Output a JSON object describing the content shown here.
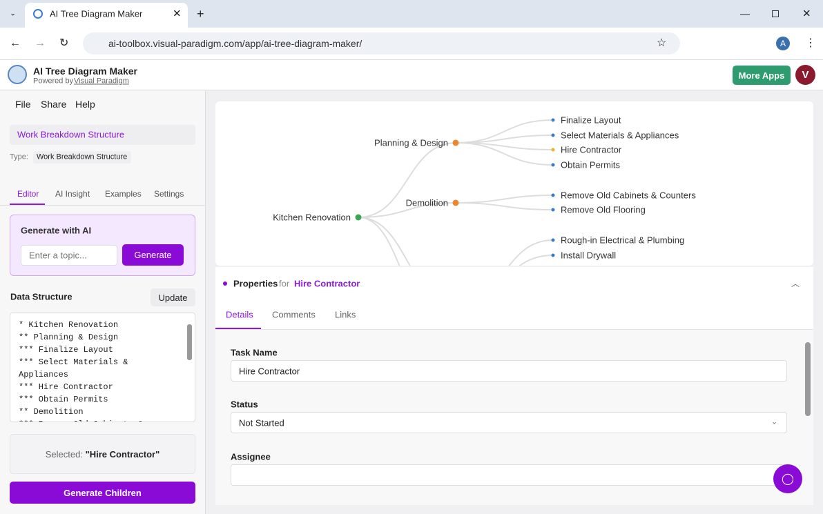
{
  "browser": {
    "tab_title": "AI Tree Diagram Maker",
    "url": "ai-toolbox.visual-paradigm.com/app/ai-tree-diagram-maker/",
    "profile": "A"
  },
  "header": {
    "title": "AI Tree Diagram Maker",
    "powered_by": "Powered by",
    "brand": "Visual Paradigm",
    "more_apps": "More Apps",
    "avatar": "V"
  },
  "menu": [
    "File",
    "Share",
    "Help"
  ],
  "document": {
    "name": "Work Breakdown Structure",
    "type_label": "Type:",
    "type": "Work Breakdown Structure"
  },
  "sidebar_tabs": [
    "Editor",
    "AI Insight",
    "Examples",
    "Settings"
  ],
  "generate_ai": {
    "title": "Generate with AI",
    "placeholder": "Enter a topic...",
    "button": "Generate"
  },
  "data_structure": {
    "title": "Data Structure",
    "button": "Update",
    "lines": [
      "* Kitchen Renovation",
      "** Planning & Design",
      "*** Finalize Layout",
      "*** Select Materials & Appliances",
      "*** Hire Contractor",
      "*** Obtain Permits",
      "** Demolition",
      "*** Remove Old Cabinets & Countertops"
    ]
  },
  "selection": {
    "label": "Selected:",
    "value": "\"Hire Contractor\"",
    "button": "Generate Children"
  },
  "diagram": {
    "nodes": [
      "Kitchen Renovation",
      "Planning & Design",
      "Demolition",
      "Finalize Layout",
      "Select Materials & Appliances",
      "Hire Contractor",
      "Obtain Permits",
      "Remove Old Cabinets & Counters",
      "Remove Old Flooring",
      "Rough-in Electrical & Plumbing",
      "Install Drywall"
    ]
  },
  "properties": {
    "title": "Properties",
    "for": "for",
    "target": "Hire Contractor",
    "tabs": [
      "Details",
      "Comments",
      "Links"
    ],
    "fields": [
      {
        "label": "Task Name",
        "value": "Hire Contractor"
      },
      {
        "label": "Status",
        "value": "Not Started"
      },
      {
        "label": "Assignee"
      }
    ]
  }
}
